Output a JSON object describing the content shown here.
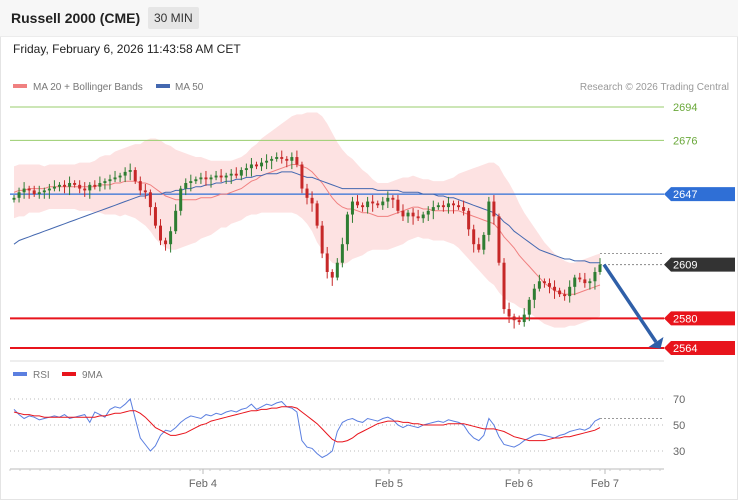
{
  "header": {
    "title": "Russell 2000 (CME)",
    "timeframe": "30 MIN"
  },
  "timestamp": "Friday, February 6, 2026 11:43:58 AM CET",
  "legend": {
    "ma20_label": "MA 20 + Bollinger Bands",
    "ma50_label": "MA 50",
    "copyright": "Research © 2026 Trading Central",
    "rsi_label": "RSI",
    "rsi_ma_label": "9MA"
  },
  "colors": {
    "ma20": "#f08080",
    "ma50": "#4468b0",
    "bollinger_fill": "#fde2e2",
    "candle_up": "#2e7d32",
    "candle_down": "#c62828",
    "resistance_green": "#9acd6e",
    "pivot_blue": "#2f6fd6",
    "support_red": "#e8141c",
    "last_price_bg": "#333333",
    "arrow": "#2f5fa8",
    "rsi": "#5b7fe0",
    "rsi_ma": "#e8141c"
  },
  "chart_data": [
    {
      "type": "candlestick",
      "title": "Russell 2000 (CME)",
      "timeframe": "30 MIN",
      "x_ticks": [
        "Feb 4",
        "Feb 5",
        "Feb 6",
        "Feb 7"
      ],
      "levels": [
        {
          "value": 2694,
          "label": "2694",
          "kind": "resistance"
        },
        {
          "value": 2676,
          "label": "2676",
          "kind": "resistance"
        },
        {
          "value": 2647,
          "label": "2647",
          "kind": "pivot"
        },
        {
          "value": 2609,
          "label": "2609",
          "kind": "last_price"
        },
        {
          "value": 2580,
          "label": "2580",
          "kind": "support"
        },
        {
          "value": 2564,
          "label": "2564",
          "kind": "support"
        }
      ],
      "forecast": {
        "from": 2609,
        "to": 2564,
        "direction": "down"
      },
      "closes": [
        2645,
        2648,
        2650,
        2649,
        2647,
        2648,
        2649,
        2650,
        2651,
        2652,
        2651,
        2653,
        2652,
        2650,
        2649,
        2652,
        2651,
        2653,
        2654,
        2655,
        2656,
        2657,
        2659,
        2660,
        2654,
        2649,
        2648,
        2640,
        2630,
        2622,
        2620,
        2627,
        2638,
        2650,
        2653,
        2654,
        2655,
        2656,
        2655,
        2656,
        2657,
        2656,
        2657,
        2658,
        2657,
        2660,
        2661,
        2663,
        2662,
        2664,
        2665,
        2666,
        2667,
        2666,
        2665,
        2667,
        2663,
        2650,
        2645,
        2642,
        2630,
        2615,
        2605,
        2602,
        2610,
        2620,
        2636,
        2643,
        2641,
        2640,
        2643,
        2642,
        2641,
        2643,
        2645,
        2644,
        2638,
        2635,
        2637,
        2635,
        2634,
        2636,
        2638,
        2640,
        2641,
        2640,
        2642,
        2641,
        2640,
        2638,
        2628,
        2620,
        2617,
        2625,
        2643,
        2635,
        2610,
        2585,
        2581,
        2579,
        2578,
        2582,
        2590,
        2596,
        2600,
        2599,
        2597,
        2595,
        2593,
        2592,
        2597,
        2602,
        2601,
        2599,
        2600,
        2605,
        2609
      ],
      "ma20": [
        2648,
        2649,
        2649,
        2650,
        2650,
        2650,
        2650,
        2651,
        2651,
        2651,
        2651,
        2651,
        2651,
        2651,
        2651,
        2651,
        2651,
        2652,
        2652,
        2652,
        2653,
        2653,
        2654,
        2654,
        2654,
        2653,
        2653,
        2652,
        2650,
        2648,
        2646,
        2645,
        2644,
        2644,
        2644,
        2644,
        2644,
        2645,
        2645,
        2645,
        2646,
        2647,
        2647,
        2648,
        2649,
        2650,
        2652,
        2654,
        2655,
        2657,
        2658,
        2659,
        2660,
        2661,
        2662,
        2663,
        2663,
        2662,
        2661,
        2659,
        2656,
        2653,
        2649,
        2645,
        2642,
        2640,
        2639,
        2639,
        2638,
        2637,
        2637,
        2636,
        2635,
        2635,
        2635,
        2636,
        2637,
        2638,
        2639,
        2640,
        2640,
        2639,
        2639,
        2638,
        2638,
        2638,
        2638,
        2638,
        2638,
        2637,
        2636,
        2635,
        2634,
        2633,
        2632,
        2631,
        2628,
        2624,
        2621,
        2618,
        2614,
        2611,
        2608,
        2605,
        2602,
        2599,
        2597,
        2595,
        2594,
        2593,
        2593,
        2593,
        2594,
        2595,
        2596,
        2597,
        2598
      ],
      "ma50": [
        2620,
        2622,
        2623,
        2624,
        2625,
        2626,
        2627,
        2628,
        2629,
        2630,
        2631,
        2632,
        2633,
        2634,
        2635,
        2636,
        2637,
        2638,
        2639,
        2640,
        2641,
        2642,
        2643,
        2644,
        2645,
        2646,
        2646,
        2647,
        2647,
        2647,
        2648,
        2648,
        2649,
        2649,
        2650,
        2650,
        2651,
        2651,
        2652,
        2652,
        2653,
        2653,
        2654,
        2654,
        2655,
        2655,
        2656,
        2656,
        2657,
        2657,
        2658,
        2658,
        2658,
        2659,
        2659,
        2659,
        2658,
        2657,
        2656,
        2656,
        2655,
        2654,
        2653,
        2652,
        2651,
        2650,
        2650,
        2650,
        2650,
        2650,
        2650,
        2650,
        2649,
        2649,
        2649,
        2649,
        2649,
        2648,
        2648,
        2648,
        2648,
        2647,
        2647,
        2647,
        2646,
        2646,
        2645,
        2645,
        2644,
        2643,
        2642,
        2641,
        2640,
        2639,
        2638,
        2637,
        2635,
        2632,
        2630,
        2627,
        2625,
        2623,
        2621,
        2619,
        2617,
        2616,
        2615,
        2614,
        2613,
        2612,
        2612,
        2611,
        2611,
        2611,
        2610,
        2610,
        2610
      ],
      "bb_width": [
        14,
        14,
        14,
        13,
        13,
        13,
        12,
        12,
        12,
        12,
        12,
        12,
        12,
        13,
        13,
        13,
        14,
        15,
        16,
        16,
        17,
        18,
        18,
        19,
        20,
        21,
        23,
        25,
        27,
        28,
        28,
        28,
        27,
        26,
        25,
        24,
        23,
        22,
        21,
        20,
        19,
        18,
        18,
        17,
        17,
        17,
        17,
        18,
        19,
        20,
        21,
        22,
        23,
        24,
        25,
        26,
        27,
        28,
        30,
        32,
        35,
        36,
        36,
        35,
        33,
        31,
        29,
        27,
        25,
        23,
        21,
        19,
        18,
        18,
        18,
        18,
        18,
        18,
        17,
        17,
        16,
        16,
        16,
        16,
        16,
        16,
        17,
        18,
        20,
        22,
        24,
        26,
        28,
        30,
        32,
        33,
        34,
        33,
        32,
        30,
        28,
        26,
        25,
        24,
        23,
        22,
        21,
        20,
        19,
        18,
        17,
        17,
        17,
        17,
        17,
        17,
        17
      ]
    },
    {
      "type": "line",
      "series": [
        {
          "name": "RSI",
          "values": [
            62,
            58,
            55,
            57,
            56,
            54,
            55,
            56,
            57,
            56,
            58,
            55,
            56,
            57,
            58,
            52,
            60,
            58,
            56,
            62,
            64,
            63,
            66,
            70,
            55,
            40,
            35,
            30,
            34,
            42,
            46,
            45,
            48,
            52,
            55,
            57,
            56,
            55,
            58,
            57,
            59,
            58,
            60,
            61,
            60,
            62,
            63,
            66,
            62,
            64,
            66,
            65,
            67,
            68,
            64,
            63,
            60,
            38,
            33,
            32,
            28,
            25,
            27,
            30,
            45,
            52,
            54,
            55,
            53,
            52,
            55,
            54,
            53,
            55,
            56,
            54,
            50,
            48,
            50,
            49,
            48,
            50,
            51,
            52,
            53,
            52,
            54,
            53,
            52,
            50,
            44,
            40,
            38,
            42,
            55,
            50,
            41,
            35,
            34,
            33,
            35,
            38,
            40,
            42,
            43,
            42,
            41,
            40,
            42,
            43,
            45,
            46,
            47,
            46,
            48,
            53,
            55
          ]
        },
        {
          "name": "9MA",
          "values": [
            60,
            59,
            58,
            58,
            57,
            57,
            56,
            56,
            56,
            56,
            56,
            56,
            56,
            56,
            56,
            56,
            56,
            57,
            57,
            58,
            59,
            59,
            60,
            61,
            61,
            59,
            56,
            52,
            48,
            46,
            44,
            42,
            42,
            43,
            44,
            46,
            48,
            50,
            51,
            53,
            54,
            55,
            56,
            57,
            58,
            59,
            60,
            61,
            61,
            62,
            62,
            63,
            63,
            64,
            64,
            64,
            63,
            60,
            57,
            54,
            51,
            47,
            43,
            39,
            37,
            37,
            38,
            40,
            43,
            45,
            47,
            49,
            51,
            52,
            53,
            53,
            53,
            52,
            52,
            51,
            51,
            50,
            50,
            50,
            50,
            50,
            51,
            51,
            51,
            51,
            50,
            49,
            48,
            47,
            47,
            47,
            46,
            45,
            43,
            41,
            40,
            39,
            38,
            38,
            38,
            38,
            39,
            40,
            40,
            41,
            41,
            42,
            43,
            44,
            45,
            46,
            48
          ]
        }
      ],
      "y_ticks": [
        70,
        50,
        30
      ],
      "ylim": [
        20,
        80
      ]
    }
  ]
}
